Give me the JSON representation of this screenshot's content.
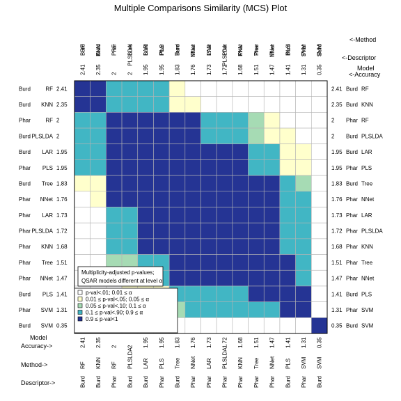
{
  "chart_data": {
    "type": "heatmap",
    "title": "Multiple Comparisons Similarity (MCS) Plot",
    "models": [
      {
        "descriptor": "Burd",
        "method": "RF",
        "accuracy": "2.41"
      },
      {
        "descriptor": "Burd",
        "method": "KNN",
        "accuracy": "2.35"
      },
      {
        "descriptor": "Phar",
        "method": "RF",
        "accuracy": "2"
      },
      {
        "descriptor": "Burd",
        "method": "PLSLDA",
        "accuracy": "2"
      },
      {
        "descriptor": "Burd",
        "method": "LAR",
        "accuracy": "1.95"
      },
      {
        "descriptor": "Phar",
        "method": "PLS",
        "accuracy": "1.95"
      },
      {
        "descriptor": "Burd",
        "method": "Tree",
        "accuracy": "1.83"
      },
      {
        "descriptor": "Phar",
        "method": "NNet",
        "accuracy": "1.76"
      },
      {
        "descriptor": "Phar",
        "method": "LAR",
        "accuracy": "1.73"
      },
      {
        "descriptor": "Phar",
        "method": "PLSLDA",
        "accuracy": "1.72"
      },
      {
        "descriptor": "Phar",
        "method": "KNN",
        "accuracy": "1.68"
      },
      {
        "descriptor": "Phar",
        "method": "Tree",
        "accuracy": "1.51"
      },
      {
        "descriptor": "Phar",
        "method": "NNet",
        "accuracy": "1.47"
      },
      {
        "descriptor": "Burd",
        "method": "PLS",
        "accuracy": "1.41"
      },
      {
        "descriptor": "Phar",
        "method": "SVM",
        "accuracy": "1.31"
      },
      {
        "descriptor": "Burd",
        "method": "SVM",
        "accuracy": "0.35"
      }
    ],
    "matrix": [
      [
        4,
        4,
        3,
        3,
        3,
        3,
        1,
        0,
        0,
        0,
        0,
        0,
        0,
        0,
        0,
        0
      ],
      [
        4,
        4,
        3,
        3,
        3,
        3,
        1,
        1,
        0,
        0,
        0,
        0,
        0,
        0,
        0,
        0
      ],
      [
        3,
        3,
        4,
        4,
        4,
        4,
        4,
        4,
        3,
        3,
        3,
        2,
        1,
        0,
        0,
        0
      ],
      [
        3,
        3,
        4,
        4,
        4,
        4,
        4,
        4,
        3,
        3,
        3,
        2,
        1,
        1,
        0,
        0
      ],
      [
        3,
        3,
        4,
        4,
        4,
        4,
        4,
        4,
        4,
        4,
        4,
        3,
        3,
        1,
        1,
        0
      ],
      [
        3,
        3,
        4,
        4,
        4,
        4,
        4,
        4,
        4,
        4,
        4,
        3,
        3,
        1,
        1,
        0
      ],
      [
        1,
        1,
        4,
        4,
        4,
        4,
        4,
        4,
        4,
        4,
        4,
        4,
        4,
        3,
        2,
        0
      ],
      [
        0,
        1,
        4,
        4,
        4,
        4,
        4,
        4,
        4,
        4,
        4,
        4,
        4,
        3,
        3,
        0
      ],
      [
        0,
        0,
        3,
        3,
        4,
        4,
        4,
        4,
        4,
        4,
        4,
        4,
        4,
        3,
        3,
        0
      ],
      [
        0,
        0,
        3,
        3,
        4,
        4,
        4,
        4,
        4,
        4,
        4,
        4,
        4,
        3,
        3,
        0
      ],
      [
        0,
        0,
        3,
        3,
        4,
        4,
        4,
        4,
        4,
        4,
        4,
        4,
        4,
        3,
        3,
        0
      ],
      [
        0,
        0,
        2,
        2,
        3,
        3,
        4,
        4,
        4,
        4,
        4,
        4,
        4,
        4,
        3,
        0
      ],
      [
        0,
        0,
        1,
        1,
        3,
        3,
        4,
        4,
        4,
        4,
        4,
        4,
        4,
        4,
        3,
        0
      ],
      [
        0,
        0,
        0,
        1,
        1,
        1,
        3,
        3,
        3,
        3,
        3,
        4,
        4,
        4,
        4,
        0
      ],
      [
        0,
        0,
        0,
        0,
        1,
        1,
        2,
        3,
        3,
        3,
        3,
        3,
        3,
        4,
        4,
        0
      ],
      [
        0,
        0,
        0,
        0,
        0,
        0,
        0,
        0,
        0,
        0,
        0,
        0,
        0,
        0,
        0,
        4
      ]
    ],
    "colors": [
      "#ffffff",
      "#ffffcc",
      "#a6dbb4",
      "#41b6c4",
      "#253494"
    ],
    "grid": true,
    "headers": {
      "top_method": "<-Method",
      "top_descriptor": "<-Descriptor",
      "top_accuracy_1": "Model",
      "top_accuracy_2": "<-Accuracy",
      "bottom_model": "Model",
      "bottom_accuracy": "Accuracy->",
      "bottom_method": "Method->",
      "bottom_descriptor": "Descriptor->"
    },
    "legend": {
      "placement": "bottom-left",
      "title_1": "Multiplicity-adjusted p-values;",
      "title_2": "QSAR models different at level α",
      "entries": [
        {
          "label": "p-val<.01;   0.01 ≤ α",
          "color_index": 0
        },
        {
          "label": "0.01 ≤ p-val<.05;   0.05 ≤ α",
          "color_index": 1
        },
        {
          "label": "0.05 ≤ p-val<.10;   0.1 ≤ α",
          "color_index": 2
        },
        {
          "label": "0.1 ≤ p-val<.90;   0.9 ≤ α",
          "color_index": 3
        },
        {
          "label": "0.9 ≤ p-val<1",
          "color_index": 4
        }
      ]
    }
  }
}
